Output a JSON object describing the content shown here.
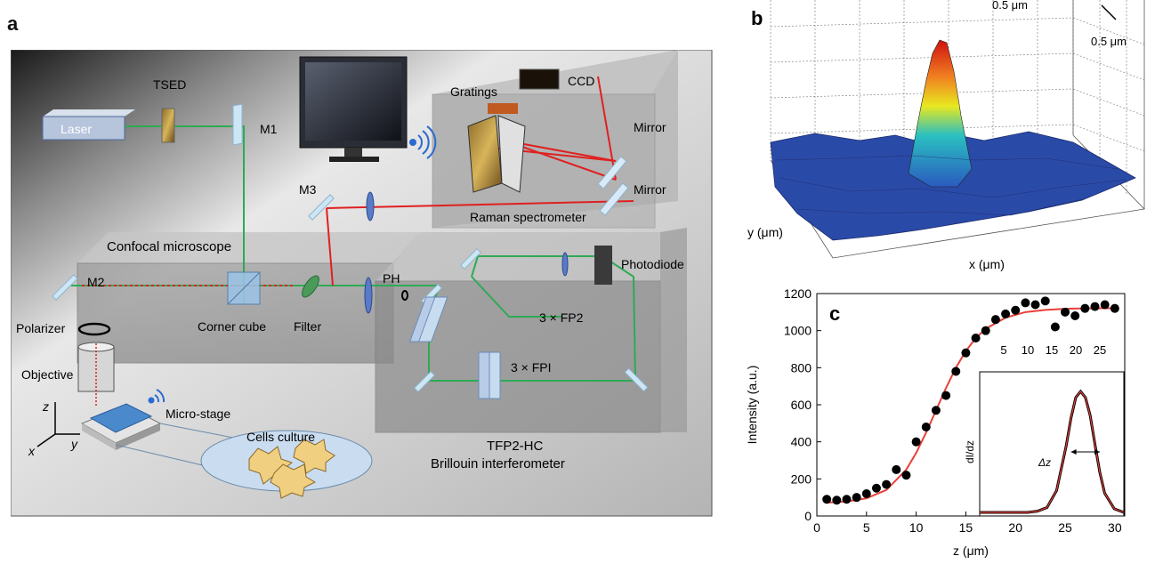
{
  "panel_letters": {
    "a": "a",
    "b": "b",
    "c": "c"
  },
  "panel_a": {
    "labels": {
      "tsed": "TSED",
      "laser": "Laser",
      "m1": "M1",
      "gratings": "Gratings",
      "ccd": "CCD",
      "mirror_top": "Mirror",
      "mirror_bottom": "Mirror",
      "m3": "M3",
      "raman": "Raman spectrometer",
      "confocal": "Confocal microscope",
      "m2": "M2",
      "corner_cube": "Corner cube",
      "filter": "Filter",
      "ph": "PH",
      "photodiode": "Photodiode",
      "fp2": "3 × FP2",
      "fpi": "3 × FPI",
      "polarizer": "Polarizer",
      "objective": "Objective",
      "micro_stage": "Micro-stage",
      "cells": "Cells culture",
      "tfp_1": "TFP2-HC",
      "tfp_2": "Brillouin interferometer",
      "axis_z": "z",
      "axis_x": "x",
      "axis_y": "y"
    },
    "colors": {
      "green_beam": "#2eaa55",
      "red_beam": "#e02020",
      "box_fill": "#a6a6a6"
    }
  },
  "panel_b": {
    "scale_top": "0.5 μm",
    "scale_right": "0.5 μm",
    "ylabel": "y (μm)",
    "xlabel": "x (μm)"
  },
  "chart_data": {
    "type": "scatter",
    "title": "",
    "xlabel": "z (μm)",
    "ylabel": "Intensity (a.u.)",
    "xlim": [
      0,
      31
    ],
    "ylim": [
      0,
      1200
    ],
    "xticks": [
      0,
      5,
      10,
      15,
      20,
      25,
      30
    ],
    "yticks": [
      0,
      200,
      400,
      600,
      800,
      1000,
      1200
    ],
    "series": [
      {
        "kind": "points",
        "color": "#000000",
        "x": [
          1,
          2,
          3,
          4,
          5,
          6,
          7,
          8,
          9,
          10,
          11,
          12,
          13,
          14,
          15,
          16,
          17,
          18,
          19,
          20,
          21,
          22,
          23,
          24,
          25,
          26,
          27,
          28,
          29,
          30
        ],
        "y": [
          90,
          85,
          90,
          100,
          120,
          150,
          170,
          250,
          220,
          400,
          480,
          570,
          650,
          780,
          880,
          960,
          1000,
          1060,
          1090,
          1110,
          1150,
          1140,
          1160,
          1020,
          1100,
          1080,
          1120,
          1130,
          1140,
          1120
        ]
      },
      {
        "kind": "fit_line",
        "color": "#e8403a",
        "x": [
          1,
          3,
          5,
          7,
          9,
          10,
          11,
          12,
          13,
          14,
          15,
          16,
          17,
          19,
          21,
          23,
          25,
          27,
          29,
          30
        ],
        "y": [
          72,
          78,
          95,
          140,
          250,
          340,
          450,
          570,
          690,
          800,
          890,
          960,
          1010,
          1070,
          1100,
          1112,
          1118,
          1120,
          1121,
          1121
        ]
      }
    ],
    "inset": {
      "ylabel": "dI/dz",
      "annotation": "Δz",
      "xticks": [
        5,
        10,
        15,
        20,
        25
      ],
      "xlim": [
        0,
        30
      ],
      "curve_x": [
        0,
        2,
        4,
        6,
        8,
        10,
        12,
        14,
        16,
        18,
        19,
        20,
        21,
        22,
        23,
        24,
        25,
        26,
        28,
        30
      ],
      "curve_y": [
        0,
        0,
        0,
        0,
        0,
        0,
        0.01,
        0.04,
        0.18,
        0.55,
        0.78,
        0.95,
        1.0,
        0.95,
        0.8,
        0.56,
        0.33,
        0.16,
        0.03,
        0
      ],
      "delta_z": [
        19,
        25
      ]
    }
  }
}
